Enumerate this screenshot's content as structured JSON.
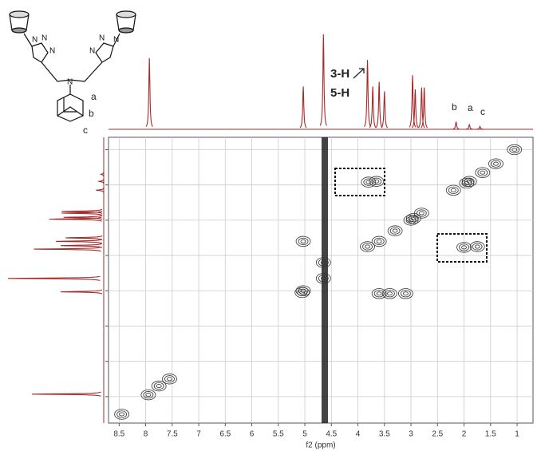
{
  "chart_data": {
    "type": "nmr2d",
    "x_label": "f2 (ppm)",
    "xlim": [
      8.7,
      0.7
    ],
    "ylim": [
      0.65,
      8.75
    ],
    "xticks": [
      8.5,
      8.0,
      7.5,
      7.0,
      6.5,
      6.0,
      5.5,
      5.0,
      4.5,
      4.0,
      3.5,
      3.0,
      2.5,
      2.0,
      1.5,
      1.0
    ],
    "y_gridlines": [
      1,
      2,
      3,
      4,
      5,
      6,
      7,
      8
    ],
    "grid": true,
    "spectrum_color": "#a52a2a",
    "contour_color": "#333333",
    "spectrum_ylim": [
      0,
      100
    ],
    "peaks": {
      "ppm": [
        7.93,
        5.03,
        4.65,
        3.82,
        3.72,
        3.6,
        3.5,
        2.97,
        2.92,
        2.8,
        2.75,
        2.15,
        1.9,
        1.7
      ],
      "intensity": [
        75,
        45,
        100,
        73,
        45,
        50,
        40,
        57,
        42,
        44,
        44,
        8,
        5,
        3
      ]
    },
    "cross_peaks": {
      "x": [
        8.45,
        7.95,
        7.75,
        7.55,
        5.03,
        5.03,
        4.65,
        4.65,
        3.82,
        3.6,
        3.3,
        3.0,
        2.95,
        2.8,
        2.2,
        1.95,
        1.9,
        1.65,
        1.4,
        1.05,
        3.8,
        3.65,
        2.0,
        1.75,
        3.6,
        3.4,
        3.1,
        5.05
      ],
      "y": [
        8.5,
        7.95,
        7.7,
        7.5,
        3.6,
        5.0,
        4.65,
        4.2,
        3.75,
        3.6,
        3.3,
        3.0,
        2.95,
        2.8,
        2.15,
        1.95,
        1.9,
        1.65,
        1.4,
        1.0,
        1.92,
        1.9,
        3.77,
        3.75,
        5.08,
        5.08,
        5.08,
        5.05
      ]
    },
    "annotations": [
      "3-H",
      "5-H",
      "b",
      "a",
      "c"
    ],
    "structure": {
      "atoms": [
        "N",
        "N",
        "N",
        "N",
        "N",
        "N",
        "N"
      ],
      "labels": [
        "a",
        "b",
        "c"
      ]
    }
  }
}
